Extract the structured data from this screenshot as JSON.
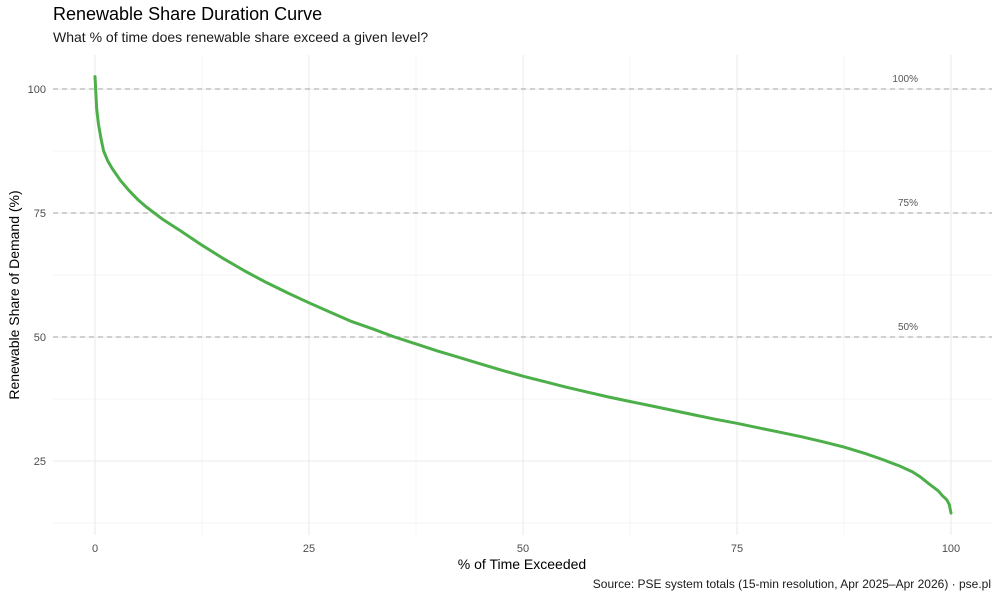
{
  "chart_data": {
    "type": "line",
    "title": "Renewable Share Duration Curve",
    "subtitle": "What % of time does renewable share exceed a given level?",
    "xlabel": "% of Time Exceeded",
    "ylabel": "Renewable Share of Demand (%)",
    "caption": "Source: PSE system totals (15-min resolution, Apr 2025–Apr 2026) · pse.pl",
    "xlim": [
      0,
      100
    ],
    "ylim": [
      14.5,
      102.5
    ],
    "x_ticks": [
      0,
      25,
      50,
      75,
      100
    ],
    "y_ticks": [
      25,
      50,
      75,
      100
    ],
    "grid": true,
    "line_color": "#4daf4a",
    "reference_lines": [
      {
        "y": 100,
        "label": "100%"
      },
      {
        "y": 75,
        "label": "75%"
      },
      {
        "y": 50,
        "label": "50%"
      }
    ],
    "x": [
      0,
      0.1,
      0.2,
      0.4,
      0.7,
      1,
      1.5,
      2,
      3,
      4,
      5,
      6,
      8,
      10,
      12.5,
      15,
      17.5,
      20,
      22.5,
      25,
      27.5,
      30,
      32.5,
      35,
      37.5,
      40,
      42.5,
      45,
      47.5,
      50,
      52.5,
      55,
      57.5,
      60,
      62.5,
      65,
      67.5,
      70,
      72.5,
      75,
      77.5,
      80,
      82.5,
      85,
      87.5,
      90,
      92,
      94,
      95.5,
      96.5,
      97.5,
      98.5,
      99,
      99.5,
      99.8,
      100
    ],
    "y": [
      102.5,
      99,
      96,
      93,
      90,
      87.5,
      85.5,
      84,
      81.5,
      79.5,
      77.7,
      76.2,
      73.6,
      71.4,
      68.5,
      65.8,
      63.3,
      61,
      58.9,
      56.9,
      55,
      53.1,
      51.6,
      50,
      48.6,
      47.2,
      45.9,
      44.6,
      43.3,
      42.1,
      41,
      39.9,
      38.9,
      37.9,
      37,
      36.1,
      35.2,
      34.3,
      33.4,
      32.6,
      31.7,
      30.8,
      29.9,
      28.9,
      27.8,
      26.5,
      25.3,
      24,
      22.8,
      21.7,
      20.3,
      19,
      18,
      17.2,
      16.2,
      14.5
    ]
  }
}
